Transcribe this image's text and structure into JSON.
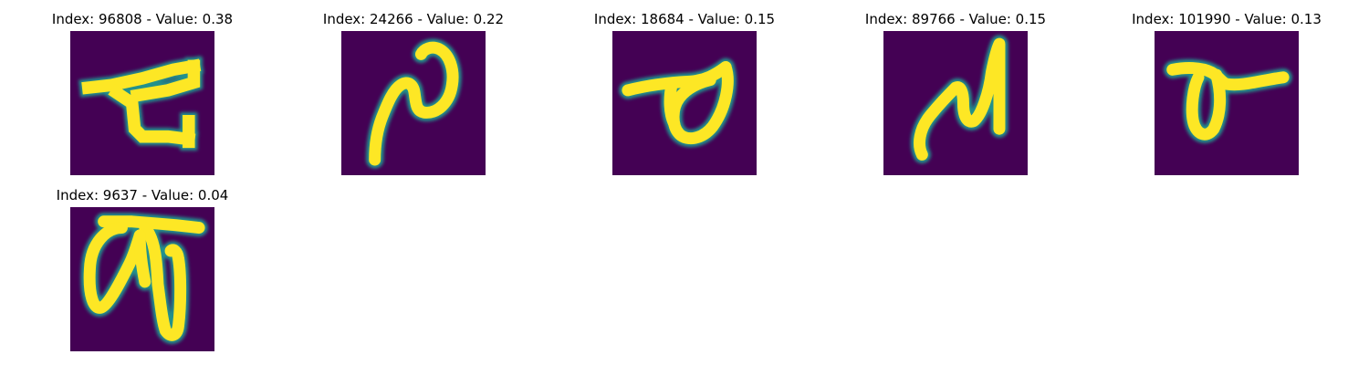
{
  "figure": {
    "background_color": "#ffffff",
    "colormap": "viridis",
    "colormap_colors": {
      "low": "#440154",
      "mid_low": "#3b528b",
      "mid": "#21918c",
      "mid_high": "#5ec962",
      "high": "#fde725"
    },
    "panels": [
      {
        "title": "Index: 96808 - Value: 0.38",
        "index": 96808,
        "value": 0.38,
        "glyph": "glyph-1-icon"
      },
      {
        "title": "Index: 24266 - Value: 0.22",
        "index": 24266,
        "value": 0.22,
        "glyph": "glyph-2-icon"
      },
      {
        "title": "Index: 18684 - Value: 0.15",
        "index": 18684,
        "value": 0.15,
        "glyph": "glyph-3-icon"
      },
      {
        "title": "Index: 89766 - Value: 0.15",
        "index": 89766,
        "value": 0.15,
        "glyph": "glyph-4-icon"
      },
      {
        "title": "Index: 101990 - Value: 0.13",
        "index": 101990,
        "value": 0.13,
        "glyph": "glyph-5-icon"
      },
      {
        "title": "Index: 9637 - Value: 0.04",
        "index": 9637,
        "value": 0.04,
        "glyph": "glyph-6-icon"
      }
    ]
  }
}
